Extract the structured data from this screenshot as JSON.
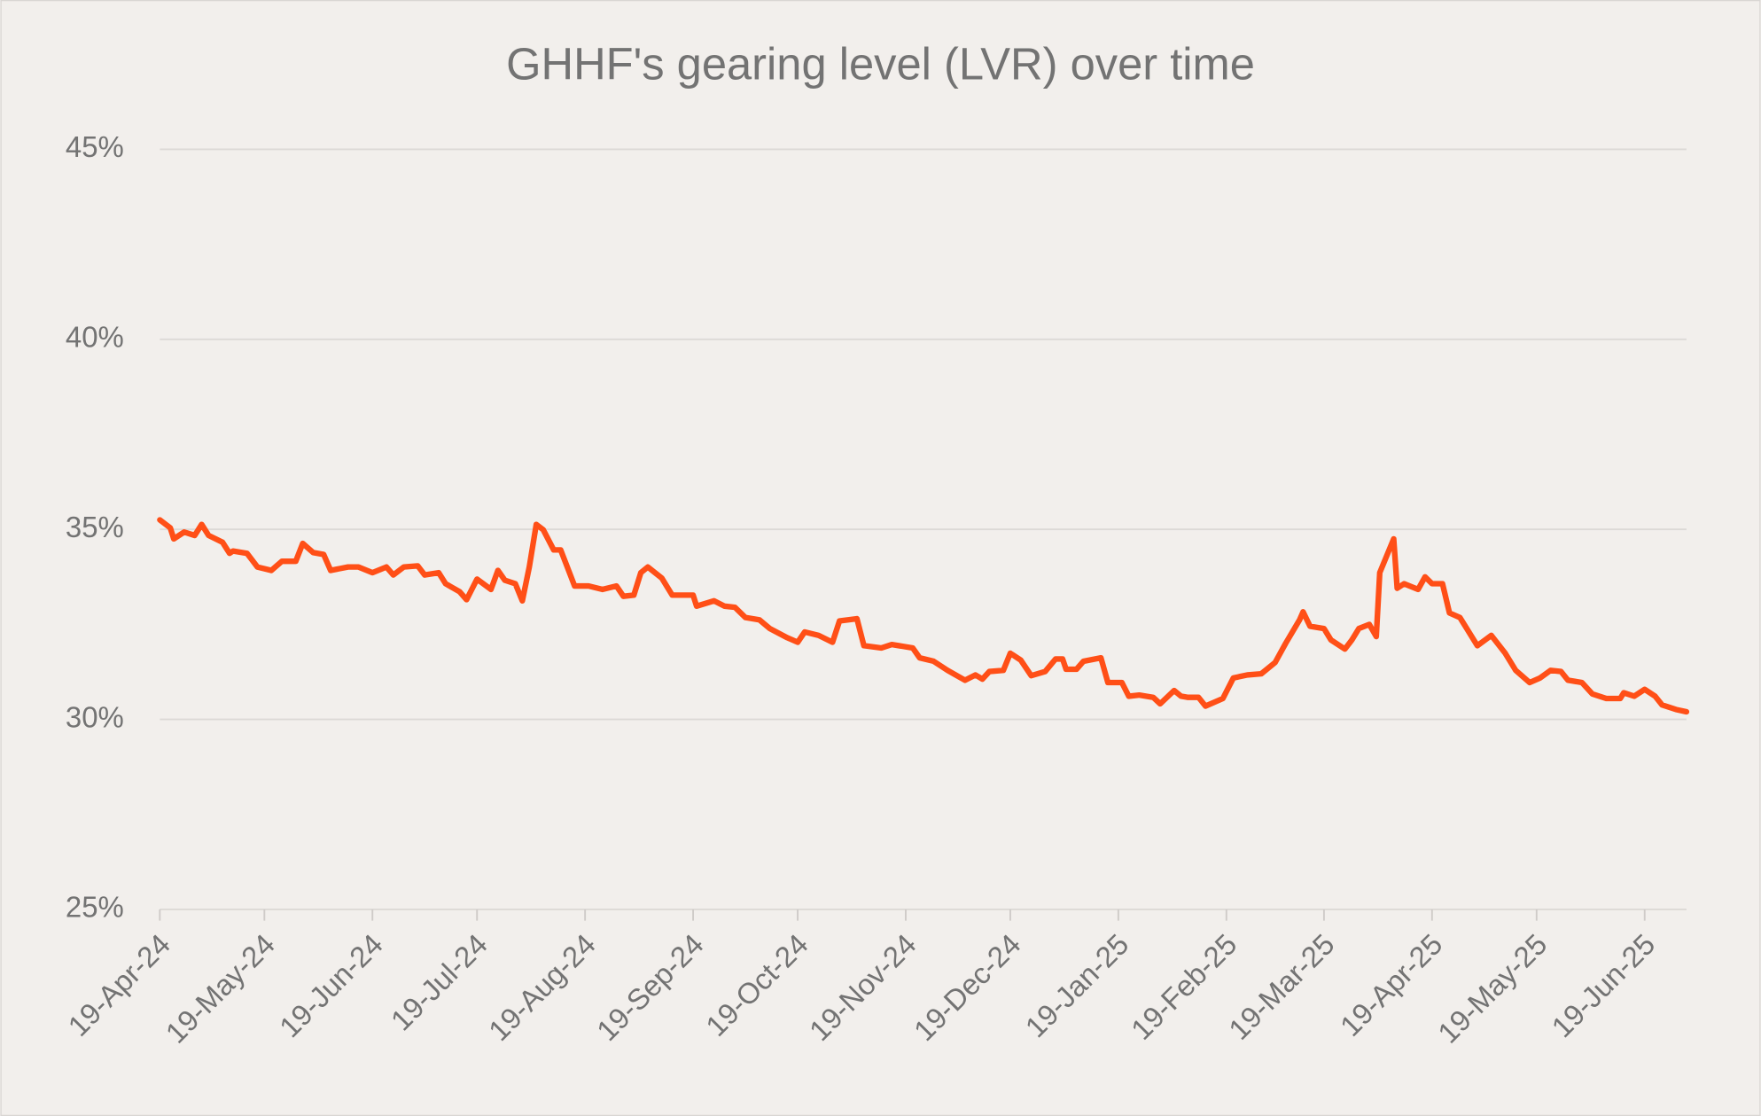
{
  "chart_data": {
    "type": "line",
    "title": "GHHF's gearing level (LVR) over time",
    "color": "#ff4f17",
    "grid": true,
    "ylim": [
      25,
      45
    ],
    "yticks": [
      {
        "value": 25,
        "label": "25%"
      },
      {
        "value": 30,
        "label": "30%"
      },
      {
        "value": 35,
        "label": "35%"
      },
      {
        "value": 40,
        "label": "40%"
      },
      {
        "value": 45,
        "label": "45%"
      }
    ],
    "xlim": [
      "2024-04-19",
      "2025-07-01"
    ],
    "xticks": [
      {
        "value": "2024-04-19",
        "label": "19-Apr-24"
      },
      {
        "value": "2024-05-19",
        "label": "19-May-24"
      },
      {
        "value": "2024-06-19",
        "label": "19-Jun-24"
      },
      {
        "value": "2024-07-19",
        "label": "19-Jul-24"
      },
      {
        "value": "2024-08-19",
        "label": "19-Aug-24"
      },
      {
        "value": "2024-09-19",
        "label": "19-Sep-24"
      },
      {
        "value": "2024-10-19",
        "label": "19-Oct-24"
      },
      {
        "value": "2024-11-19",
        "label": "19-Nov-24"
      },
      {
        "value": "2024-12-19",
        "label": "19-Dec-24"
      },
      {
        "value": "2025-01-19",
        "label": "19-Jan-25"
      },
      {
        "value": "2025-02-19",
        "label": "19-Feb-25"
      },
      {
        "value": "2025-03-19",
        "label": "19-Mar-25"
      },
      {
        "value": "2025-04-19",
        "label": "19-Apr-25"
      },
      {
        "value": "2025-05-19",
        "label": "19-May-25"
      },
      {
        "value": "2025-06-19",
        "label": "19-Jun-25"
      }
    ],
    "x": [
      "2024-04-19",
      "2024-04-22",
      "2024-04-23",
      "2024-04-26",
      "2024-04-29",
      "2024-05-01",
      "2024-05-03",
      "2024-05-07",
      "2024-05-09",
      "2024-05-10",
      "2024-05-14",
      "2024-05-17",
      "2024-05-21",
      "2024-05-24",
      "2024-05-28",
      "2024-05-30",
      "2024-06-02",
      "2024-06-05",
      "2024-06-07",
      "2024-06-12",
      "2024-06-15",
      "2024-06-19",
      "2024-06-23",
      "2024-06-25",
      "2024-06-28",
      "2024-07-02",
      "2024-07-04",
      "2024-07-08",
      "2024-07-10",
      "2024-07-14",
      "2024-07-16",
      "2024-07-19",
      "2024-07-23",
      "2024-07-25",
      "2024-07-27",
      "2024-07-30",
      "2024-08-01",
      "2024-08-03",
      "2024-08-05",
      "2024-08-07",
      "2024-08-10",
      "2024-08-12",
      "2024-08-16",
      "2024-08-20",
      "2024-08-24",
      "2024-08-28",
      "2024-08-30",
      "2024-09-02",
      "2024-09-04",
      "2024-09-06",
      "2024-09-10",
      "2024-09-13",
      "2024-09-17",
      "2024-09-19",
      "2024-09-20",
      "2024-09-25",
      "2024-09-28",
      "2024-10-01",
      "2024-10-04",
      "2024-10-08",
      "2024-10-11",
      "2024-10-16",
      "2024-10-19",
      "2024-10-21",
      "2024-10-25",
      "2024-10-29",
      "2024-10-31",
      "2024-11-05",
      "2024-11-07",
      "2024-11-12",
      "2024-11-15",
      "2024-11-21",
      "2024-11-23",
      "2024-11-27",
      "2024-12-01",
      "2024-12-06",
      "2024-12-09",
      "2024-12-11",
      "2024-12-13",
      "2024-12-17",
      "2024-12-19",
      "2024-12-22",
      "2024-12-25",
      "2024-12-29",
      "2025-01-01",
      "2025-01-03",
      "2025-01-04",
      "2025-01-07",
      "2025-01-09",
      "2025-01-14",
      "2025-01-16",
      "2025-01-20",
      "2025-01-22",
      "2025-01-25",
      "2025-01-29",
      "2025-01-31",
      "2025-02-04",
      "2025-02-06",
      "2025-02-08",
      "2025-02-11",
      "2025-02-13",
      "2025-02-18",
      "2025-02-21",
      "2025-02-25",
      "2025-03-01",
      "2025-03-05",
      "2025-03-08",
      "2025-03-12",
      "2025-03-13",
      "2025-03-15",
      "2025-03-19",
      "2025-03-21",
      "2025-03-25",
      "2025-03-27",
      "2025-03-29",
      "2025-04-01",
      "2025-04-03",
      "2025-04-04",
      "2025-04-08",
      "2025-04-09",
      "2025-04-11",
      "2025-04-15",
      "2025-04-17",
      "2025-04-19",
      "2025-04-22",
      "2025-04-24",
      "2025-04-27",
      "2025-05-02",
      "2025-05-06",
      "2025-05-10",
      "2025-05-13",
      "2025-05-17",
      "2025-05-20",
      "2025-05-23",
      "2025-05-26",
      "2025-05-28",
      "2025-06-01",
      "2025-06-04",
      "2025-06-08",
      "2025-06-12",
      "2025-06-13",
      "2025-06-16",
      "2025-06-19",
      "2025-06-22",
      "2025-06-24",
      "2025-06-28",
      "2025-07-01"
    ],
    "values": [
      35.25,
      35.04,
      34.75,
      34.93,
      34.84,
      35.13,
      34.84,
      34.66,
      34.37,
      34.43,
      34.37,
      34.01,
      33.92,
      34.16,
      34.16,
      34.63,
      34.39,
      34.34,
      33.92,
      34.01,
      34.01,
      33.86,
      34.01,
      33.8,
      34.01,
      34.04,
      33.8,
      33.86,
      33.57,
      33.36,
      33.15,
      33.69,
      33.42,
      33.92,
      33.66,
      33.57,
      33.12,
      34.01,
      35.13,
      34.99,
      34.46,
      34.46,
      33.51,
      33.51,
      33.42,
      33.51,
      33.24,
      33.27,
      33.86,
      34.01,
      33.72,
      33.27,
      33.27,
      33.27,
      32.98,
      33.12,
      32.98,
      32.95,
      32.68,
      32.62,
      32.39,
      32.15,
      32.03,
      32.3,
      32.21,
      32.03,
      32.59,
      32.65,
      31.94,
      31.88,
      31.97,
      31.88,
      31.62,
      31.53,
      31.29,
      31.03,
      31.17,
      31.06,
      31.26,
      31.29,
      31.74,
      31.56,
      31.15,
      31.26,
      31.59,
      31.59,
      31.32,
      31.32,
      31.53,
      31.62,
      30.97,
      30.97,
      30.61,
      30.64,
      30.58,
      30.41,
      30.76,
      30.61,
      30.58,
      30.58,
      30.35,
      30.55,
      31.09,
      31.17,
      31.2,
      31.5,
      32.0,
      32.62,
      32.83,
      32.45,
      32.39,
      32.09,
      31.85,
      32.09,
      32.39,
      32.5,
      32.18,
      33.86,
      34.75,
      33.45,
      33.57,
      33.42,
      33.75,
      33.57,
      33.57,
      32.8,
      32.68,
      31.94,
      32.21,
      31.74,
      31.29,
      30.97,
      31.09,
      31.29,
      31.26,
      31.03,
      30.97,
      30.67,
      30.55,
      30.55,
      30.7,
      30.61,
      30.79,
      30.61,
      30.38,
      30.26,
      30.2
    ]
  }
}
